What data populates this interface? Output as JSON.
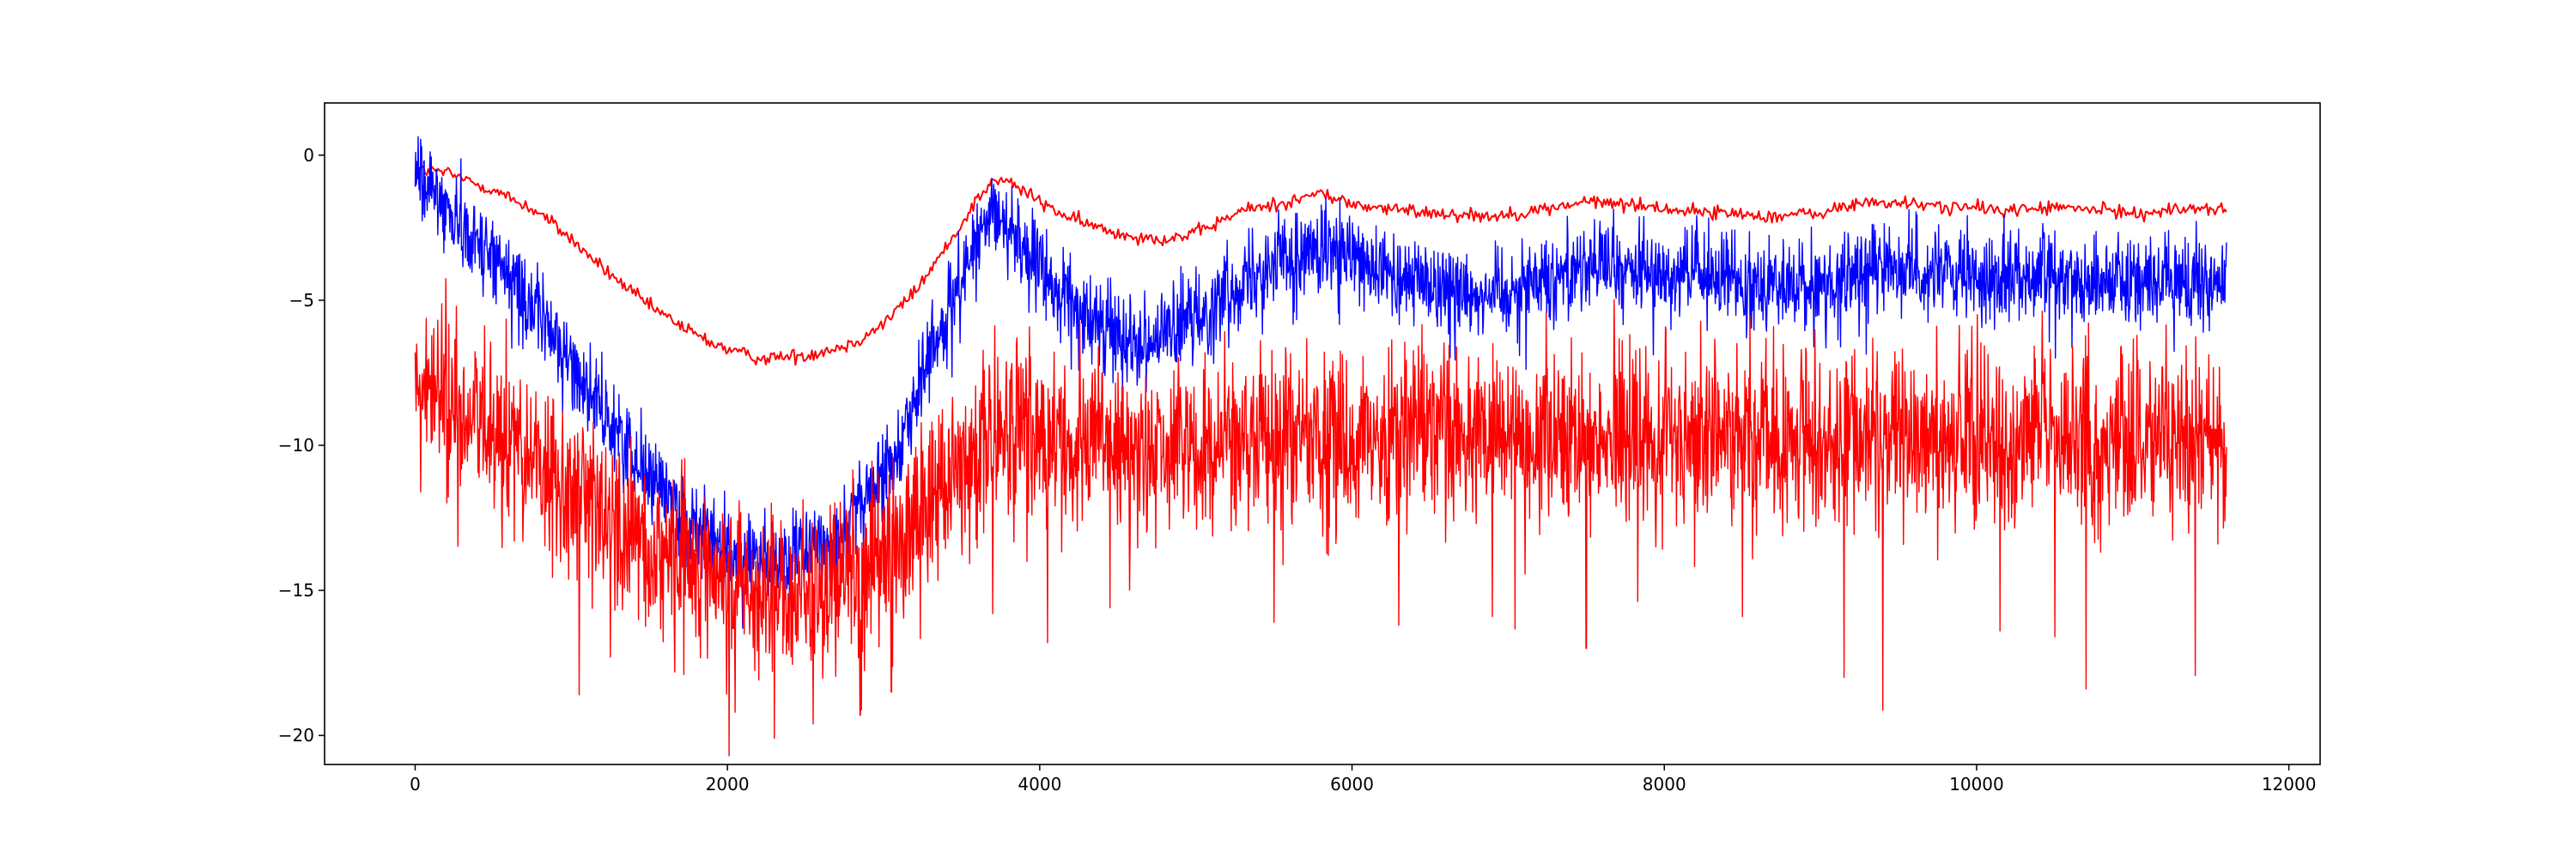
{
  "chart_data": {
    "type": "line",
    "title": "",
    "xlabel": "",
    "ylabel": "",
    "xlim": [
      -580,
      12200
    ],
    "ylim": [
      -21.0,
      1.8
    ],
    "x_ticks": [
      0,
      2000,
      4000,
      6000,
      8000,
      10000,
      12000
    ],
    "x_tick_labels": [
      "0",
      "2000",
      "4000",
      "6000",
      "8000",
      "10000",
      "12000"
    ],
    "y_ticks": [
      0,
      -5,
      -10,
      -15,
      -20
    ],
    "y_tick_labels": [
      "0",
      "−5",
      "−10",
      "−15",
      "−20"
    ],
    "grid": false,
    "legend": "none",
    "series": [
      {
        "color": "#ff0000",
        "style": "smooth",
        "x": [
          0,
          200,
          500,
          800,
          1000,
          1200,
          1500,
          1800,
          2000,
          2200,
          2500,
          2800,
          3000,
          3200,
          3400,
          3600,
          3700,
          3800,
          4000,
          4200,
          4500,
          4800,
          5000,
          5300,
          5600,
          5800,
          6000,
          6300,
          6600,
          6900,
          7200,
          7500,
          7800,
          8100,
          8400,
          8700,
          9000,
          9300,
          9600,
          9900,
          10200,
          10500,
          10800,
          11100,
          11400,
          11600
        ],
        "y": [
          -0.5,
          -0.6,
          -1.2,
          -2.0,
          -2.9,
          -3.9,
          -5.2,
          -6.2,
          -6.7,
          -7.0,
          -6.9,
          -6.5,
          -5.8,
          -4.7,
          -3.2,
          -1.5,
          -0.9,
          -0.9,
          -1.6,
          -2.2,
          -2.7,
          -2.9,
          -2.7,
          -1.9,
          -1.6,
          -1.3,
          -1.7,
          -1.9,
          -2.0,
          -2.1,
          -1.9,
          -1.6,
          -1.7,
          -1.9,
          -2.0,
          -2.1,
          -2.0,
          -1.6,
          -1.7,
          -1.8,
          -1.9,
          -1.8,
          -1.9,
          -2.0,
          -1.8,
          -1.9
        ],
        "noise": 0.12,
        "spikes": []
      },
      {
        "color": "#0000ff",
        "style": "noisy",
        "x": [
          0,
          200,
          500,
          800,
          1000,
          1200,
          1500,
          1800,
          2000,
          2200,
          2400,
          2600,
          2800,
          3000,
          3200,
          3400,
          3600,
          3750,
          3900,
          4100,
          4300,
          4500,
          4700,
          4900,
          5100,
          5300,
          5500,
          5700,
          5900,
          6100,
          6300,
          6500,
          6700,
          6900,
          7100,
          7300,
          7500,
          7700,
          7900,
          8100,
          8300,
          8500,
          8700,
          8900,
          9100,
          9300,
          9500,
          9700,
          9900,
          10100,
          10300,
          10500,
          10700,
          10900,
          11100,
          11300,
          11600
        ],
        "y": [
          -0.6,
          -1.8,
          -3.5,
          -5.5,
          -7.2,
          -8.9,
          -11.0,
          -12.8,
          -13.6,
          -14.0,
          -13.9,
          -13.5,
          -12.5,
          -11.0,
          -8.5,
          -5.5,
          -2.8,
          -2.0,
          -3.2,
          -4.6,
          -5.7,
          -6.1,
          -6.4,
          -6.0,
          -5.2,
          -4.2,
          -3.6,
          -3.3,
          -3.4,
          -3.9,
          -4.2,
          -4.4,
          -4.6,
          -4.7,
          -4.5,
          -4.0,
          -3.7,
          -3.9,
          -4.1,
          -4.0,
          -4.2,
          -4.3,
          -4.4,
          -4.6,
          -4.4,
          -4.0,
          -3.8,
          -4.0,
          -4.2,
          -4.3,
          -4.0,
          -4.1,
          -4.3,
          -4.2,
          -4.4,
          -4.3,
          -4.4
        ],
        "noise": 0.75,
        "spikes": []
      },
      {
        "color": "#ff0000",
        "style": "noisy",
        "x": [
          0,
          200,
          500,
          800,
          1000,
          1200,
          1500,
          1800,
          2000,
          2200,
          2400,
          2600,
          2800,
          3000,
          3200,
          3400,
          3600,
          3800,
          4000,
          4300,
          4600,
          5000,
          5500,
          6000,
          6500,
          7000,
          7500,
          8000,
          8500,
          9000,
          9500,
          10000,
          10500,
          11000,
          11600
        ],
        "y": [
          -8.0,
          -8.6,
          -9.5,
          -10.7,
          -11.6,
          -12.4,
          -13.5,
          -14.1,
          -14.5,
          -14.9,
          -15.2,
          -14.9,
          -14.3,
          -13.7,
          -12.5,
          -11.1,
          -10.0,
          -9.5,
          -9.6,
          -9.9,
          -10.2,
          -10.1,
          -9.8,
          -9.6,
          -9.7,
          -9.6,
          -9.5,
          -9.7,
          -9.8,
          -9.8,
          -9.7,
          -9.6,
          -9.7,
          -9.7,
          -9.6
        ],
        "noise": 1.5,
        "spikes": [
          [
            1050,
            -18.6
          ],
          [
            1250,
            -17.3
          ],
          [
            1720,
            -17.9
          ],
          [
            2050,
            -19.2
          ],
          [
            2300,
            -20.1
          ],
          [
            2550,
            -19.6
          ],
          [
            2850,
            -19.3
          ],
          [
            3050,
            -18.5
          ],
          [
            3700,
            -15.8
          ],
          [
            4050,
            -16.8
          ],
          [
            4450,
            -15.6
          ],
          [
            5500,
            -16.1
          ],
          [
            6300,
            -16.2
          ],
          [
            6900,
            -15.9
          ],
          [
            7500,
            -17.0
          ],
          [
            8500,
            -15.9
          ],
          [
            9150,
            -18.0
          ],
          [
            9400,
            -17.6
          ],
          [
            10150,
            -16.4
          ],
          [
            10500,
            -16.6
          ],
          [
            10700,
            -18.4
          ],
          [
            11400,
            -15.5
          ]
        ]
      }
    ]
  }
}
